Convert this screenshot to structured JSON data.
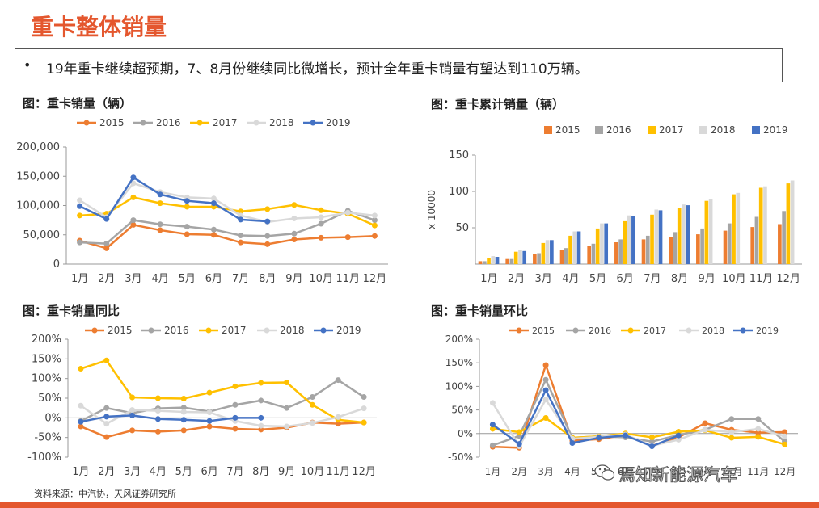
{
  "page_title": "重卡整体销量",
  "bullet": "19年重卡继续超预期，7、8月份继续同比微增长，预计全年重卡销量有望达到110万辆。",
  "bullet_mark": "•",
  "source": "资料来源：中汽协，天风证券研究所",
  "watermark": "焉知新能源汽车",
  "colors": {
    "2015": "#ed7d31",
    "2016": "#a5a5a5",
    "2017": "#ffc000",
    "2018": "#d9d9d9",
    "2019": "#4472c4",
    "accent": "#e4572e"
  },
  "chart_data": [
    {
      "id": "monthly",
      "type": "line",
      "title": "图：重卡销量（辆）",
      "categories": [
        "1月",
        "2月",
        "3月",
        "4月",
        "5月",
        "6月",
        "7月",
        "8月",
        "9月",
        "10月",
        "11月",
        "12月"
      ],
      "ylim": [
        0,
        200000
      ],
      "yticks": [
        0,
        50000,
        100000,
        150000,
        200000
      ],
      "ytick_labels": [
        "0",
        "50,000",
        "100,000",
        "150,000",
        "200,000"
      ],
      "grid": false,
      "legend": "top",
      "series": [
        {
          "name": "2015",
          "values": [
            40000,
            27000,
            67000,
            58000,
            51000,
            50000,
            37000,
            34000,
            42000,
            45000,
            46000,
            48000
          ]
        },
        {
          "name": "2016",
          "values": [
            37000,
            35000,
            75000,
            68000,
            64000,
            59000,
            49000,
            48000,
            52000,
            69000,
            91000,
            75000
          ]
        },
        {
          "name": "2017",
          "values": [
            83000,
            86000,
            114000,
            104000,
            98000,
            98000,
            90000,
            94000,
            101000,
            92000,
            86000,
            66000
          ]
        },
        {
          "name": "2018",
          "values": [
            109000,
            80000,
            138000,
            123000,
            114000,
            112000,
            83000,
            72000,
            78000,
            80000,
            88000,
            83000
          ]
        },
        {
          "name": "2019",
          "values": [
            99000,
            77000,
            148000,
            119000,
            108000,
            104000,
            76000,
            73000,
            null,
            null,
            null,
            null
          ]
        }
      ]
    },
    {
      "id": "cumulative",
      "type": "bar",
      "title": "图：重卡累计销量（辆）",
      "ylabel": "x 10000",
      "categories": [
        "1月",
        "2月",
        "3月",
        "4月",
        "5月",
        "6月",
        "7月",
        "8月",
        "9月",
        "10月",
        "11月",
        "12月"
      ],
      "ylim": [
        0,
        150
      ],
      "yticks": [
        50,
        100,
        150
      ],
      "ytick_labels": [
        "50",
        "100",
        "150"
      ],
      "grid": false,
      "legend": "top",
      "series": [
        {
          "name": "2015",
          "values": [
            4,
            7,
            14,
            20,
            25,
            30,
            34,
            37,
            41,
            46,
            51,
            55
          ]
        },
        {
          "name": "2016",
          "values": [
            4,
            7,
            15,
            22,
            28,
            34,
            39,
            44,
            49,
            56,
            65,
            73
          ]
        },
        {
          "name": "2017",
          "values": [
            8,
            17,
            29,
            39,
            49,
            59,
            68,
            77,
            87,
            96,
            105,
            111
          ]
        },
        {
          "name": "2018",
          "values": [
            11,
            19,
            33,
            45,
            56,
            67,
            75,
            82,
            90,
            98,
            107,
            115
          ]
        },
        {
          "name": "2019",
          "values": [
            10,
            18,
            33,
            45,
            56,
            66,
            74,
            81,
            null,
            null,
            null,
            null
          ]
        }
      ]
    },
    {
      "id": "yoy",
      "type": "line",
      "title": "图：重卡销量同比",
      "categories": [
        "1月",
        "2月",
        "3月",
        "4月",
        "5月",
        "6月",
        "7月",
        "8月",
        "9月",
        "10月",
        "11月",
        "12月"
      ],
      "ylim": [
        -100,
        200
      ],
      "yticks": [
        -100,
        -50,
        0,
        50,
        100,
        150,
        200
      ],
      "ytick_labels": [
        "-100%",
        "-50%",
        "0%",
        "50%",
        "100%",
        "150%",
        "200%"
      ],
      "grid": false,
      "legend": "top",
      "series": [
        {
          "name": "2015",
          "values": [
            -22,
            -49,
            -32,
            -35,
            -32,
            -22,
            -28,
            -30,
            -25,
            -12,
            -15,
            -12
          ]
        },
        {
          "name": "2016",
          "values": [
            -8,
            25,
            12,
            24,
            26,
            16,
            33,
            44,
            25,
            53,
            96,
            53
          ]
        },
        {
          "name": "2017",
          "values": [
            125,
            146,
            52,
            50,
            49,
            64,
            80,
            89,
            90,
            33,
            -5,
            -12
          ]
        },
        {
          "name": "2018",
          "values": [
            31,
            -15,
            20,
            18,
            15,
            14,
            -8,
            -20,
            -22,
            -13,
            2,
            24
          ]
        },
        {
          "name": "2019",
          "values": [
            -10,
            3,
            6,
            -3,
            -5,
            -8,
            0,
            0,
            null,
            null,
            null,
            null
          ]
        }
      ]
    },
    {
      "id": "mom",
      "type": "line",
      "title": "图：重卡销量环比",
      "categories": [
        "1月",
        "2月",
        "3月",
        "4月",
        "5月",
        "6月",
        "7月",
        "8月",
        "9月",
        "10月",
        "11月",
        "12月"
      ],
      "ylim": [
        -50,
        200
      ],
      "yticks": [
        -50,
        0,
        50,
        100,
        150,
        200
      ],
      "ytick_labels": [
        "-50%",
        "0%",
        "50%",
        "100%",
        "150%",
        "200%"
      ],
      "grid": false,
      "legend": "top",
      "series": [
        {
          "name": "2015",
          "values": [
            -28,
            -30,
            145,
            -15,
            -12,
            -3,
            -26,
            -8,
            22,
            8,
            2,
            3
          ]
        },
        {
          "name": "2016",
          "values": [
            -25,
            -5,
            114,
            -9,
            -6,
            -8,
            -17,
            -3,
            8,
            31,
            31,
            -17
          ]
        },
        {
          "name": "2017",
          "values": [
            10,
            3,
            33,
            -9,
            -6,
            0,
            -8,
            4,
            7,
            -9,
            -7,
            -23
          ]
        },
        {
          "name": "2018",
          "values": [
            65,
            -27,
            72,
            -11,
            -7,
            -2,
            -26,
            -13,
            8,
            3,
            10,
            -6
          ]
        },
        {
          "name": "2019",
          "values": [
            19,
            -22,
            92,
            -20,
            -9,
            -4,
            -27,
            -4,
            null,
            null,
            null,
            null
          ]
        }
      ]
    }
  ]
}
